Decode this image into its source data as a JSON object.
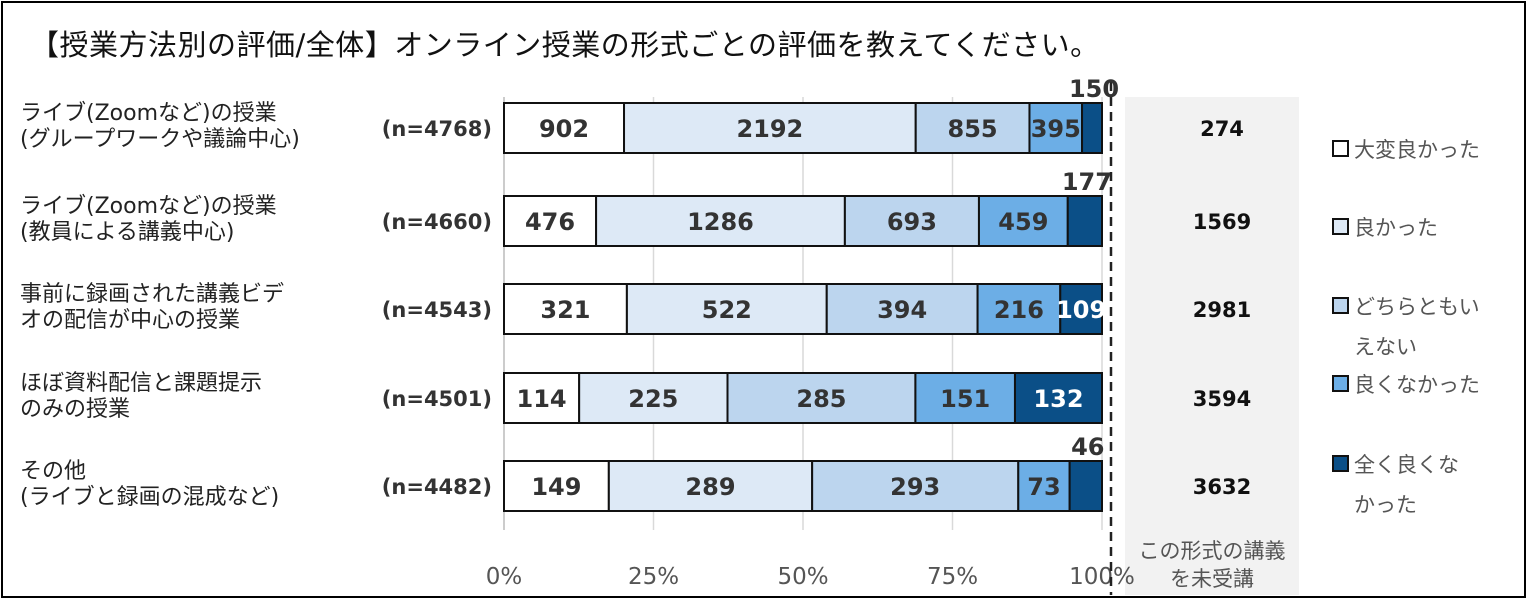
{
  "title": "【授業方法別の評価/全体】オンライン授業の形式ごとの評価を教えてください。",
  "chart_data": {
    "type": "bar",
    "orientation": "horizontal",
    "stacked": "100%",
    "title": "【授業方法別の評価/全体】オンライン授業の形式ごとの評価を教えてください。",
    "categories": [
      {
        "line1": "ライブ(Zoomなど)の授業",
        "line2": "(グループワークや議論中心)",
        "n": "(n=4768)"
      },
      {
        "line1": "ライブ(Zoomなど)の授業",
        "line2": "(教員による講義中心)",
        "n": "(n=4660)"
      },
      {
        "line1": "事前に録画された講義ビデ",
        "line2": "オの配信が中心の授業",
        "n": "(n=4543)"
      },
      {
        "line1": "ほぼ資料配信と課題提示",
        "line2": "のみの授業",
        "n": "(n=4501)"
      },
      {
        "line1": "その他",
        "line2": "(ライブと録画の混成など)",
        "n": "(n=4482)"
      }
    ],
    "series": [
      {
        "name": "大変良かった",
        "color": "#ffffff",
        "text_color": "#333333",
        "values": [
          902,
          476,
          321,
          114,
          149
        ]
      },
      {
        "name": "良かった",
        "color": "#dde9f6",
        "text_color": "#333333",
        "values": [
          2192,
          1286,
          522,
          225,
          289
        ]
      },
      {
        "name": "どちらともいえない",
        "color": "#bcd5ee",
        "text_color": "#333333",
        "values": [
          855,
          693,
          394,
          285,
          293
        ]
      },
      {
        "name": "良くなかった",
        "color": "#6caee6",
        "text_color": "#333333",
        "values": [
          395,
          459,
          216,
          151,
          73
        ]
      },
      {
        "name": "全く良くなかった",
        "color": "#0b4f87",
        "text_color": "#ffffff",
        "values": [
          150,
          177,
          109,
          132,
          46
        ]
      }
    ],
    "not_taken": {
      "label_line1": "この形式の講義",
      "label_line2": "を未受講",
      "values": [
        274,
        1569,
        2981,
        3594,
        3632
      ]
    },
    "x_ticks": [
      "0%",
      "25%",
      "50%",
      "75%",
      "100%"
    ],
    "xlim": [
      0,
      100
    ],
    "grid": true,
    "legend_position": "right",
    "legend_lines": [
      [
        "大変良かった"
      ],
      [
        "良かった"
      ],
      [
        "どちらともい",
        "えない"
      ],
      [
        "良くなかった"
      ],
      [
        "全く良くな",
        "かった"
      ]
    ]
  }
}
